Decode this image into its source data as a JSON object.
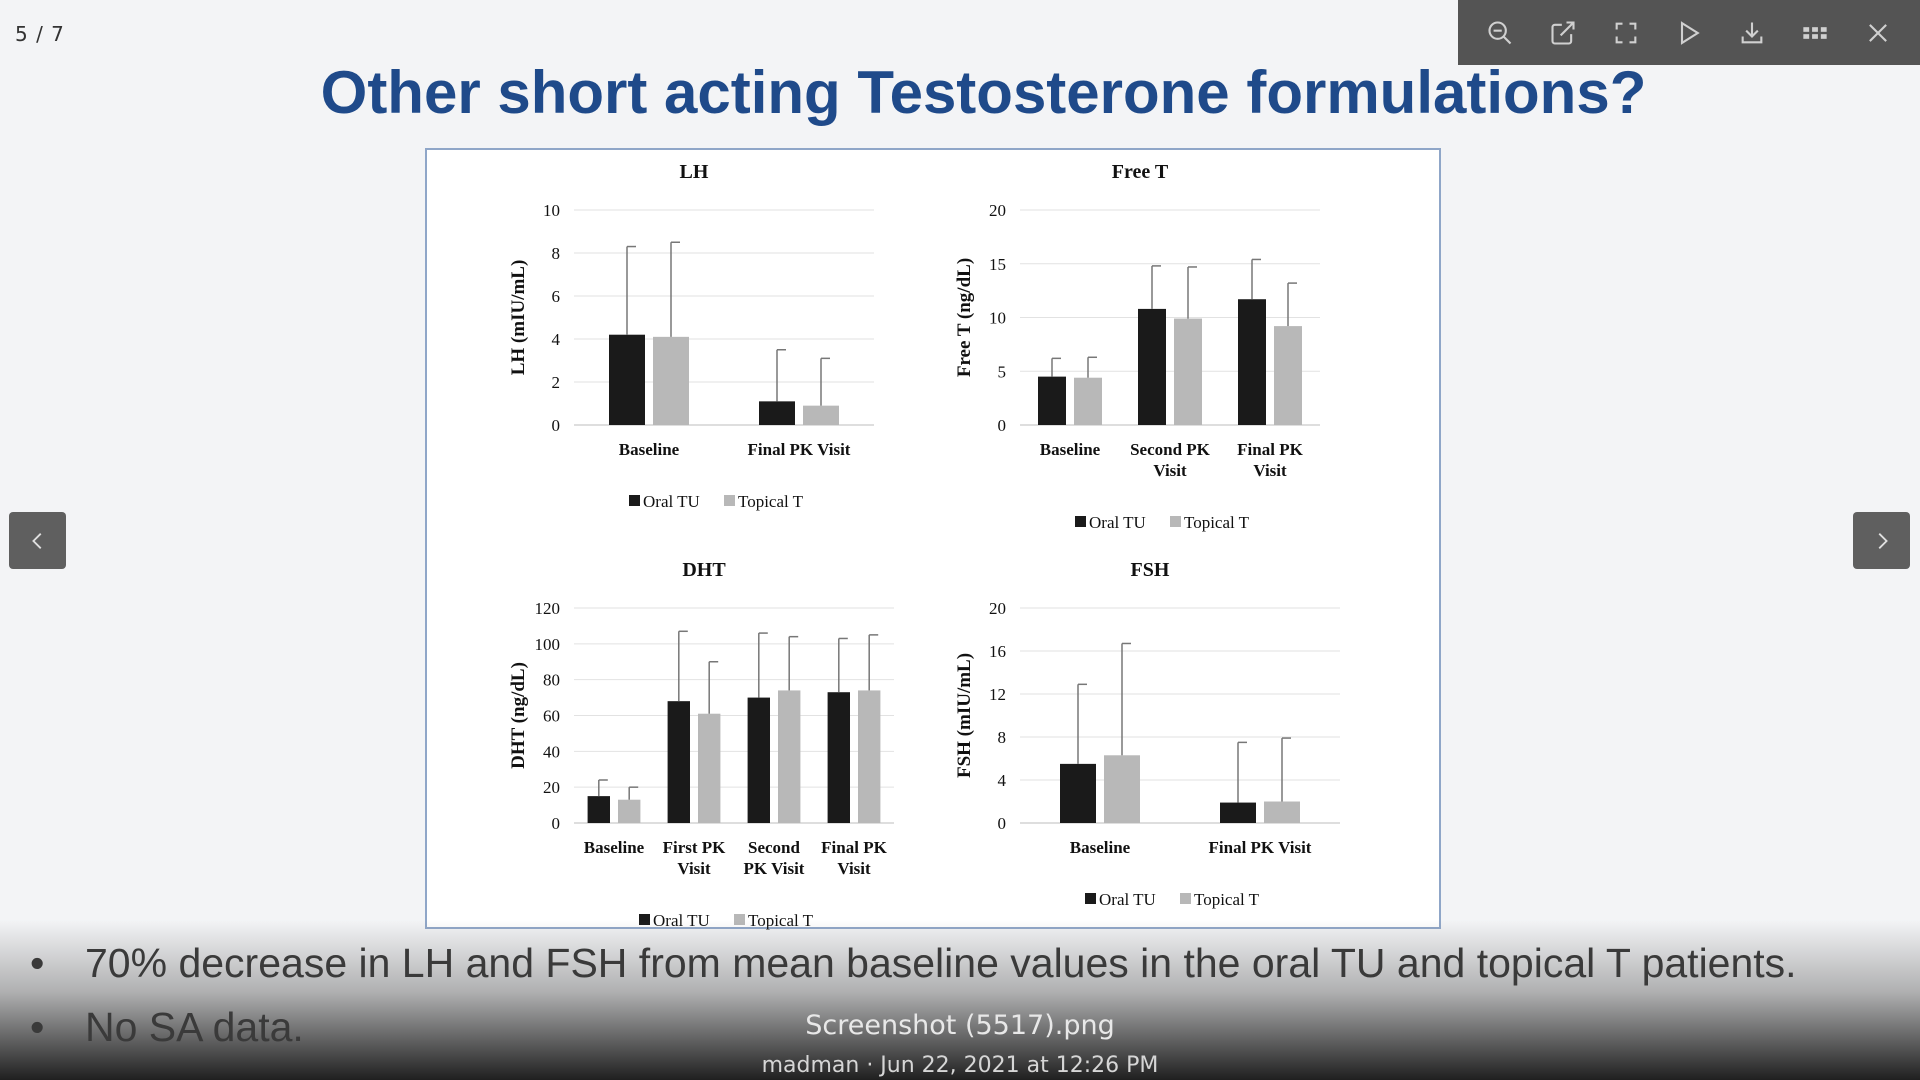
{
  "viewer": {
    "counter": "5 / 7",
    "file_name": "Screenshot (5517).png",
    "meta": "madman · Jun 22, 2021 at 12:26 PM",
    "toolbar_icons": [
      "zoom-out-icon",
      "open-external-icon",
      "fullscreen-icon",
      "play-icon",
      "download-icon",
      "grid-icon",
      "close-icon"
    ]
  },
  "slide": {
    "title": "Other short acting Testosterone formulations?",
    "bullets": [
      "70% decrease in LH and FSH from mean baseline values in the oral TU and topical T patients.",
      "No SA data."
    ],
    "bullet_marker": "•"
  },
  "colors": {
    "oral": "#1a1a1a",
    "topical": "#b8b8b8",
    "title": "#1f4a8a",
    "toolbar": "#545454"
  },
  "chart_data": [
    {
      "type": "bar",
      "title": "LH",
      "ylabel": "LH (mIU/mL)",
      "ylim": [
        0,
        10
      ],
      "yticks": [
        0,
        2,
        4,
        6,
        8,
        10
      ],
      "categories": [
        [
          "Baseline"
        ],
        [
          "Final PK Visit"
        ]
      ],
      "series": [
        {
          "name": "Oral TU",
          "values": [
            4.2,
            1.1
          ],
          "errors": [
            4.1,
            2.4
          ]
        },
        {
          "name": "Topical T",
          "values": [
            4.1,
            0.9
          ],
          "errors": [
            4.4,
            2.2
          ]
        }
      ],
      "grid": true,
      "legend": "bottom"
    },
    {
      "type": "bar",
      "title": "Free T",
      "ylabel": "Free T (ng/dL)",
      "ylim": [
        0,
        20
      ],
      "yticks": [
        0,
        5,
        10,
        15,
        20
      ],
      "categories": [
        [
          "Baseline"
        ],
        [
          "Second PK",
          "Visit"
        ],
        [
          "Final PK",
          "Visit"
        ]
      ],
      "series": [
        {
          "name": "Oral TU",
          "values": [
            4.5,
            10.8,
            11.7
          ],
          "errors": [
            1.7,
            4.0,
            3.7
          ]
        },
        {
          "name": "Topical T",
          "values": [
            4.4,
            9.9,
            9.2
          ],
          "errors": [
            1.9,
            4.8,
            4.0
          ]
        }
      ],
      "grid": true,
      "legend": "bottom"
    },
    {
      "type": "bar",
      "title": "DHT",
      "ylabel": "DHT (ng/dL)",
      "ylim": [
        0,
        120
      ],
      "yticks": [
        0,
        20,
        40,
        60,
        80,
        100,
        120
      ],
      "categories": [
        [
          "Baseline"
        ],
        [
          "First PK",
          "Visit"
        ],
        [
          "Second",
          "PK Visit"
        ],
        [
          "Final PK",
          "Visit"
        ]
      ],
      "series": [
        {
          "name": "Oral TU",
          "values": [
            15,
            68,
            70,
            73
          ],
          "errors": [
            9,
            39,
            36,
            30
          ]
        },
        {
          "name": "Topical T",
          "values": [
            13,
            61,
            74,
            74
          ],
          "errors": [
            7,
            29,
            30,
            31
          ]
        }
      ],
      "grid": true,
      "legend": "bottom"
    },
    {
      "type": "bar",
      "title": "FSH",
      "ylabel": "FSH (mIU/mL)",
      "ylim": [
        0,
        20
      ],
      "yticks": [
        0,
        4,
        8,
        12,
        16,
        20
      ],
      "categories": [
        [
          "Baseline"
        ],
        [
          "Final PK Visit"
        ]
      ],
      "series": [
        {
          "name": "Oral TU",
          "values": [
            5.5,
            1.9
          ],
          "errors": [
            7.4,
            5.6
          ]
        },
        {
          "name": "Topical T",
          "values": [
            6.3,
            2.0
          ],
          "errors": [
            10.4,
            5.9
          ]
        }
      ],
      "grid": true,
      "legend": "bottom"
    }
  ]
}
